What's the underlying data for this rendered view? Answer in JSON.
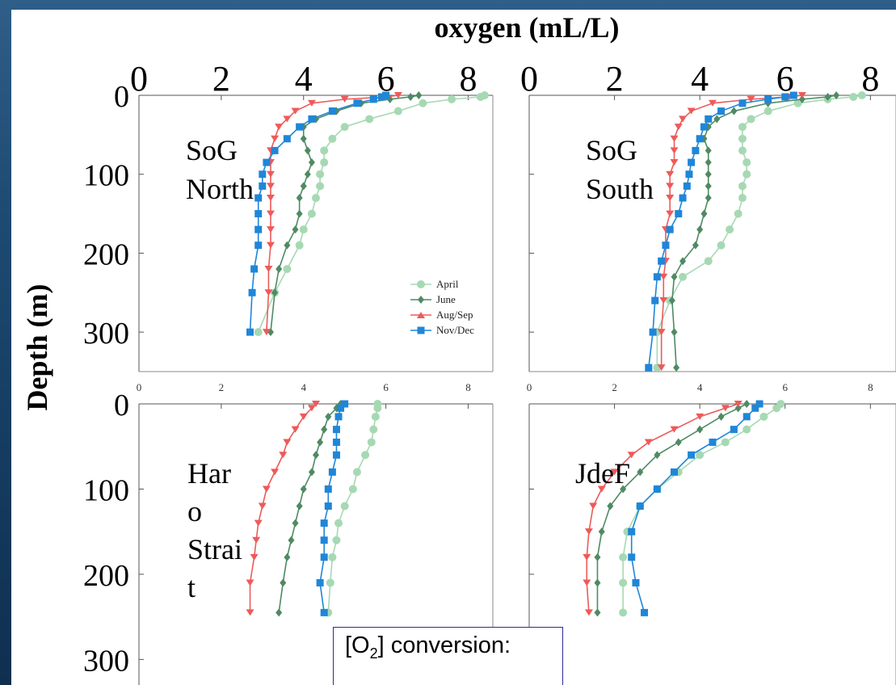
{
  "chart_data": {
    "type": "line",
    "title": "oxygen (mL/L)",
    "ylabel": "Depth (m)",
    "x_ticks_big": [
      "0",
      "2",
      "4",
      "6",
      "8"
    ],
    "x_ticks_small": [
      "0",
      "2",
      "4",
      "6",
      "8"
    ],
    "y_ticks": [
      "0",
      "100",
      "200",
      "300"
    ],
    "xlim": [
      0,
      8.6
    ],
    "ylim_top": [
      0,
      350
    ],
    "ylim_bottom": [
      0,
      330
    ],
    "colors": {
      "April": "#a6d9b3",
      "June": "#4f8a63",
      "Aug/Sep": "#ee5a5a",
      "Nov/Dec": "#1f86d8"
    },
    "legend": [
      "April",
      "June",
      "Aug/Sep",
      "Nov/Dec"
    ],
    "panels": [
      {
        "label_lines": [
          "SoG",
          "North"
        ],
        "series": [
          {
            "name": "April",
            "x": [
              8.4,
              8.3,
              7.6,
              6.9,
              6.3,
              5.6,
              5.0,
              4.7,
              4.5,
              4.5,
              4.4,
              4.4,
              4.3,
              4.2,
              4.0,
              3.9,
              3.6,
              3.3,
              2.9
            ],
            "y": [
              0,
              2,
              5,
              10,
              20,
              30,
              40,
              55,
              70,
              85,
              100,
              115,
              130,
              150,
              170,
              190,
              220,
              250,
              300
            ]
          },
          {
            "name": "June",
            "x": [
              6.8,
              6.6,
              6.1,
              5.4,
              4.8,
              4.3,
              4.0,
              4.0,
              4.1,
              4.2,
              4.1,
              4.0,
              3.9,
              3.9,
              3.8,
              3.6,
              3.4,
              3.3,
              3.2
            ],
            "y": [
              0,
              2,
              5,
              10,
              20,
              30,
              40,
              55,
              70,
              85,
              100,
              115,
              130,
              150,
              170,
              190,
              220,
              250,
              300
            ]
          },
          {
            "name": "Aug/Sep",
            "x": [
              6.3,
              6.0,
              5.0,
              4.2,
              3.8,
              3.6,
              3.4,
              3.3,
              3.2,
              3.2,
              3.2,
              3.2,
              3.2,
              3.2,
              3.2,
              3.2,
              3.15,
              3.15,
              3.1
            ],
            "y": [
              0,
              2,
              5,
              10,
              20,
              30,
              40,
              55,
              70,
              85,
              100,
              115,
              130,
              150,
              170,
              190,
              220,
              250,
              300
            ]
          },
          {
            "name": "Nov/Dec",
            "x": [
              6.0,
              5.9,
              5.7,
              5.3,
              4.7,
              4.2,
              3.9,
              3.6,
              3.3,
              3.1,
              3.0,
              3.0,
              2.9,
              2.9,
              2.9,
              2.9,
              2.8,
              2.75,
              2.7
            ],
            "y": [
              0,
              2,
              5,
              10,
              20,
              30,
              40,
              55,
              70,
              85,
              100,
              115,
              130,
              150,
              170,
              190,
              220,
              250,
              300
            ]
          }
        ]
      },
      {
        "label_lines": [
          "SoG",
          "South"
        ],
        "series": [
          {
            "name": "April",
            "x": [
              7.8,
              7.6,
              7.0,
              6.3,
              5.6,
              5.2,
              5.0,
              5.0,
              5.0,
              5.1,
              5.1,
              5.0,
              5.0,
              4.9,
              4.7,
              4.5,
              4.2,
              3.6,
              3.3,
              3.0,
              3.0
            ],
            "y": [
              0,
              2,
              5,
              10,
              20,
              30,
              40,
              55,
              70,
              85,
              100,
              115,
              130,
              150,
              170,
              190,
              210,
              230,
              260,
              300,
              345
            ]
          },
          {
            "name": "June",
            "x": [
              7.2,
              7.0,
              6.4,
              5.6,
              4.8,
              4.4,
              4.2,
              4.1,
              4.2,
              4.2,
              4.2,
              4.2,
              4.2,
              4.1,
              4.0,
              3.9,
              3.6,
              3.4,
              3.35,
              3.4,
              3.45
            ],
            "y": [
              0,
              2,
              5,
              10,
              20,
              30,
              40,
              55,
              70,
              85,
              100,
              115,
              130,
              150,
              170,
              190,
              210,
              230,
              260,
              300,
              345
            ]
          },
          {
            "name": "Aug/Sep",
            "x": [
              6.4,
              6.1,
              5.2,
              4.3,
              3.8,
              3.6,
              3.5,
              3.4,
              3.4,
              3.4,
              3.3,
              3.3,
              3.3,
              3.3,
              3.2,
              3.2,
              3.2,
              3.15,
              3.15,
              3.1,
              3.1
            ],
            "y": [
              0,
              2,
              5,
              10,
              20,
              30,
              40,
              55,
              70,
              85,
              100,
              115,
              130,
              150,
              170,
              190,
              210,
              230,
              260,
              300,
              345
            ]
          },
          {
            "name": "Nov/Dec",
            "x": [
              6.2,
              6.0,
              5.6,
              5.0,
              4.5,
              4.2,
              4.1,
              4.0,
              3.9,
              3.8,
              3.75,
              3.7,
              3.6,
              3.5,
              3.3,
              3.2,
              3.1,
              3.0,
              2.95,
              2.9,
              2.8
            ],
            "y": [
              0,
              2,
              5,
              10,
              20,
              30,
              40,
              55,
              70,
              85,
              100,
              115,
              130,
              150,
              170,
              190,
              210,
              230,
              260,
              300,
              345
            ]
          }
        ]
      },
      {
        "label_lines": [
          "Har",
          "o",
          "Strai",
          "t"
        ],
        "series": [
          {
            "name": "April",
            "x": [
              5.8,
              5.8,
              5.75,
              5.7,
              5.65,
              5.5,
              5.3,
              5.2,
              5.0,
              4.85,
              4.8,
              4.7,
              4.65,
              4.6
            ],
            "y": [
              0,
              5,
              15,
              30,
              45,
              60,
              80,
              100,
              120,
              140,
              160,
              180,
              210,
              245
            ]
          },
          {
            "name": "June",
            "x": [
              4.9,
              4.8,
              4.6,
              4.5,
              4.4,
              4.3,
              4.2,
              4.0,
              3.9,
              3.8,
              3.7,
              3.6,
              3.5,
              3.4
            ],
            "y": [
              0,
              5,
              15,
              30,
              45,
              60,
              80,
              100,
              120,
              140,
              160,
              180,
              210,
              245
            ]
          },
          {
            "name": "Aug/Sep",
            "x": [
              4.3,
              4.2,
              4.0,
              3.8,
              3.6,
              3.5,
              3.3,
              3.1,
              3.0,
              2.9,
              2.85,
              2.8,
              2.7,
              2.7
            ],
            "y": [
              0,
              5,
              15,
              30,
              45,
              60,
              80,
              100,
              120,
              140,
              160,
              180,
              210,
              245
            ]
          },
          {
            "name": "Nov/Dec",
            "x": [
              5.0,
              4.9,
              4.85,
              4.8,
              4.8,
              4.8,
              4.7,
              4.6,
              4.6,
              4.5,
              4.5,
              4.5,
              4.4,
              4.5
            ],
            "y": [
              0,
              5,
              15,
              30,
              45,
              60,
              80,
              100,
              120,
              140,
              160,
              180,
              210,
              245
            ]
          }
        ]
      },
      {
        "label_lines": [
          "JdeF"
        ],
        "series": [
          {
            "name": "April",
            "x": [
              5.9,
              5.8,
              5.5,
              5.1,
              4.6,
              4.0,
              3.5,
              3.0,
              2.6,
              2.3,
              2.2,
              2.2,
              2.2
            ],
            "y": [
              0,
              5,
              15,
              30,
              45,
              60,
              80,
              100,
              120,
              150,
              180,
              210,
              245
            ]
          },
          {
            "name": "June",
            "x": [
              5.1,
              4.9,
              4.5,
              4.0,
              3.5,
              3.0,
              2.6,
              2.2,
              1.9,
              1.7,
              1.6,
              1.6,
              1.6
            ],
            "y": [
              0,
              5,
              15,
              30,
              45,
              60,
              80,
              100,
              120,
              150,
              180,
              210,
              245
            ]
          },
          {
            "name": "Aug/Sep",
            "x": [
              4.9,
              4.6,
              4.0,
              3.4,
              2.8,
              2.4,
              2.0,
              1.7,
              1.5,
              1.4,
              1.35,
              1.35,
              1.4
            ],
            "y": [
              0,
              5,
              15,
              30,
              45,
              60,
              80,
              100,
              120,
              150,
              180,
              210,
              245
            ]
          },
          {
            "name": "Nov/Dec",
            "x": [
              5.4,
              5.3,
              5.1,
              4.8,
              4.3,
              3.8,
              3.4,
              3.0,
              2.6,
              2.4,
              2.4,
              2.5,
              2.7
            ],
            "y": [
              0,
              5,
              15,
              30,
              45,
              60,
              80,
              100,
              120,
              150,
              180,
              210,
              245
            ]
          }
        ]
      }
    ]
  },
  "conversion_box": {
    "prefix": "[O",
    "subscript": "2",
    "suffix": "] conversion:"
  }
}
